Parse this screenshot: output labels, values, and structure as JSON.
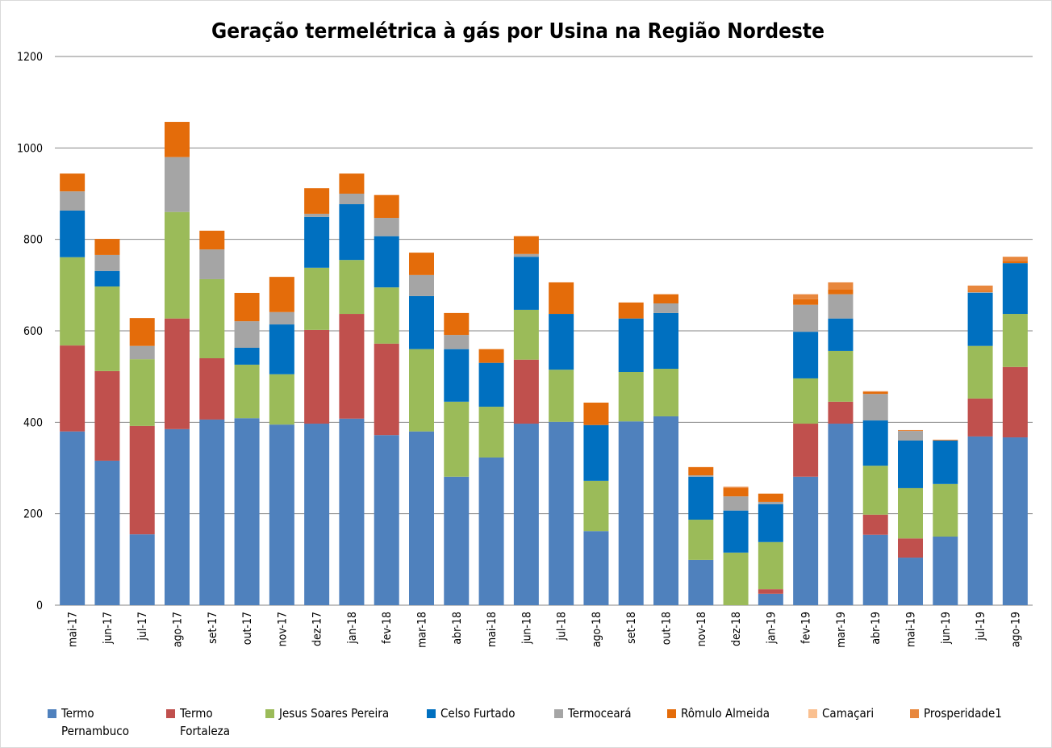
{
  "chart_data": {
    "type": "stacked_bar",
    "title": "Geração termelétrica à gás por Usina na Região Nordeste",
    "categories": [
      "mai-17",
      "jun-17",
      "jul-17",
      "ago-17",
      "set-17",
      "out-17",
      "nov-17",
      "dez-17",
      "jan-18",
      "fev-18",
      "mar-18",
      "abr-18",
      "mai-18",
      "jun-18",
      "jul-18",
      "ago-18",
      "set-18",
      "out-18",
      "nov-18",
      "dez-18",
      "jan-19",
      "fev-19",
      "mar-19",
      "abr-19",
      "mai-19",
      "jun-19",
      "jul-19",
      "ago-19"
    ],
    "series": [
      {
        "name": "Termo Pernambuco",
        "color": "#4f81bd",
        "values": [
          380,
          316,
          155,
          385,
          406,
          409,
          395,
          397,
          408,
          372,
          380,
          281,
          323,
          397,
          401,
          162,
          402,
          413,
          99,
          0,
          25,
          281,
          397,
          154,
          104,
          150,
          369,
          367
        ]
      },
      {
        "name": "Termo Fortaleza",
        "color": "#c0504d",
        "values": [
          188,
          196,
          237,
          242,
          134,
          0,
          0,
          205,
          229,
          200,
          0,
          0,
          0,
          140,
          0,
          0,
          0,
          0,
          0,
          0,
          10,
          116,
          48,
          44,
          42,
          0,
          83,
          154
        ]
      },
      {
        "name": "Jesus Soares Pereira",
        "color": "#9bbb59",
        "values": [
          193,
          185,
          146,
          233,
          173,
          117,
          110,
          136,
          118,
          123,
          180,
          164,
          111,
          109,
          114,
          110,
          108,
          104,
          88,
          115,
          103,
          99,
          111,
          107,
          110,
          115,
          115,
          116
        ]
      },
      {
        "name": "Celso Furtado",
        "color": "#0070c0",
        "values": [
          102,
          34,
          0,
          0,
          0,
          37,
          109,
          111,
          122,
          112,
          116,
          115,
          96,
          116,
          122,
          122,
          117,
          122,
          94,
          92,
          83,
          102,
          71,
          99,
          104,
          95,
          116,
          111
        ]
      },
      {
        "name": "Termoceará",
        "color": "#a5a5a5",
        "values": [
          42,
          35,
          29,
          120,
          65,
          58,
          27,
          7,
          23,
          40,
          46,
          31,
          0,
          6,
          0,
          0,
          0,
          21,
          3,
          31,
          5,
          59,
          53,
          58,
          21,
          0,
          2,
          0
        ]
      },
      {
        "name": "Rômulo Almeida",
        "color": "#e46c0a",
        "values": [
          39,
          35,
          61,
          77,
          41,
          62,
          77,
          56,
          44,
          50,
          49,
          48,
          30,
          39,
          69,
          49,
          35,
          20,
          18,
          18,
          18,
          12,
          10,
          4,
          0,
          0,
          3,
          5
        ]
      },
      {
        "name": "Camaçari",
        "color": "#fac090",
        "values": [
          0,
          0,
          0,
          0,
          0,
          0,
          0,
          0,
          0,
          0,
          0,
          0,
          0,
          0,
          0,
          0,
          0,
          0,
          0,
          0,
          0,
          0,
          0,
          0,
          0,
          0,
          0,
          0
        ]
      },
      {
        "name": "Prosperidade1",
        "color": "#e8873d",
        "values": [
          0,
          0,
          0,
          0,
          0,
          0,
          0,
          0,
          0,
          0,
          0,
          0,
          0,
          0,
          0,
          0,
          0,
          0,
          0,
          3,
          0,
          11,
          16,
          2,
          2,
          2,
          11,
          9
        ]
      }
    ],
    "ylim": [
      0,
      1200
    ],
    "yticks": [
      0,
      200,
      400,
      600,
      800,
      1000,
      1200
    ],
    "grid": true,
    "legend": "bottom"
  }
}
